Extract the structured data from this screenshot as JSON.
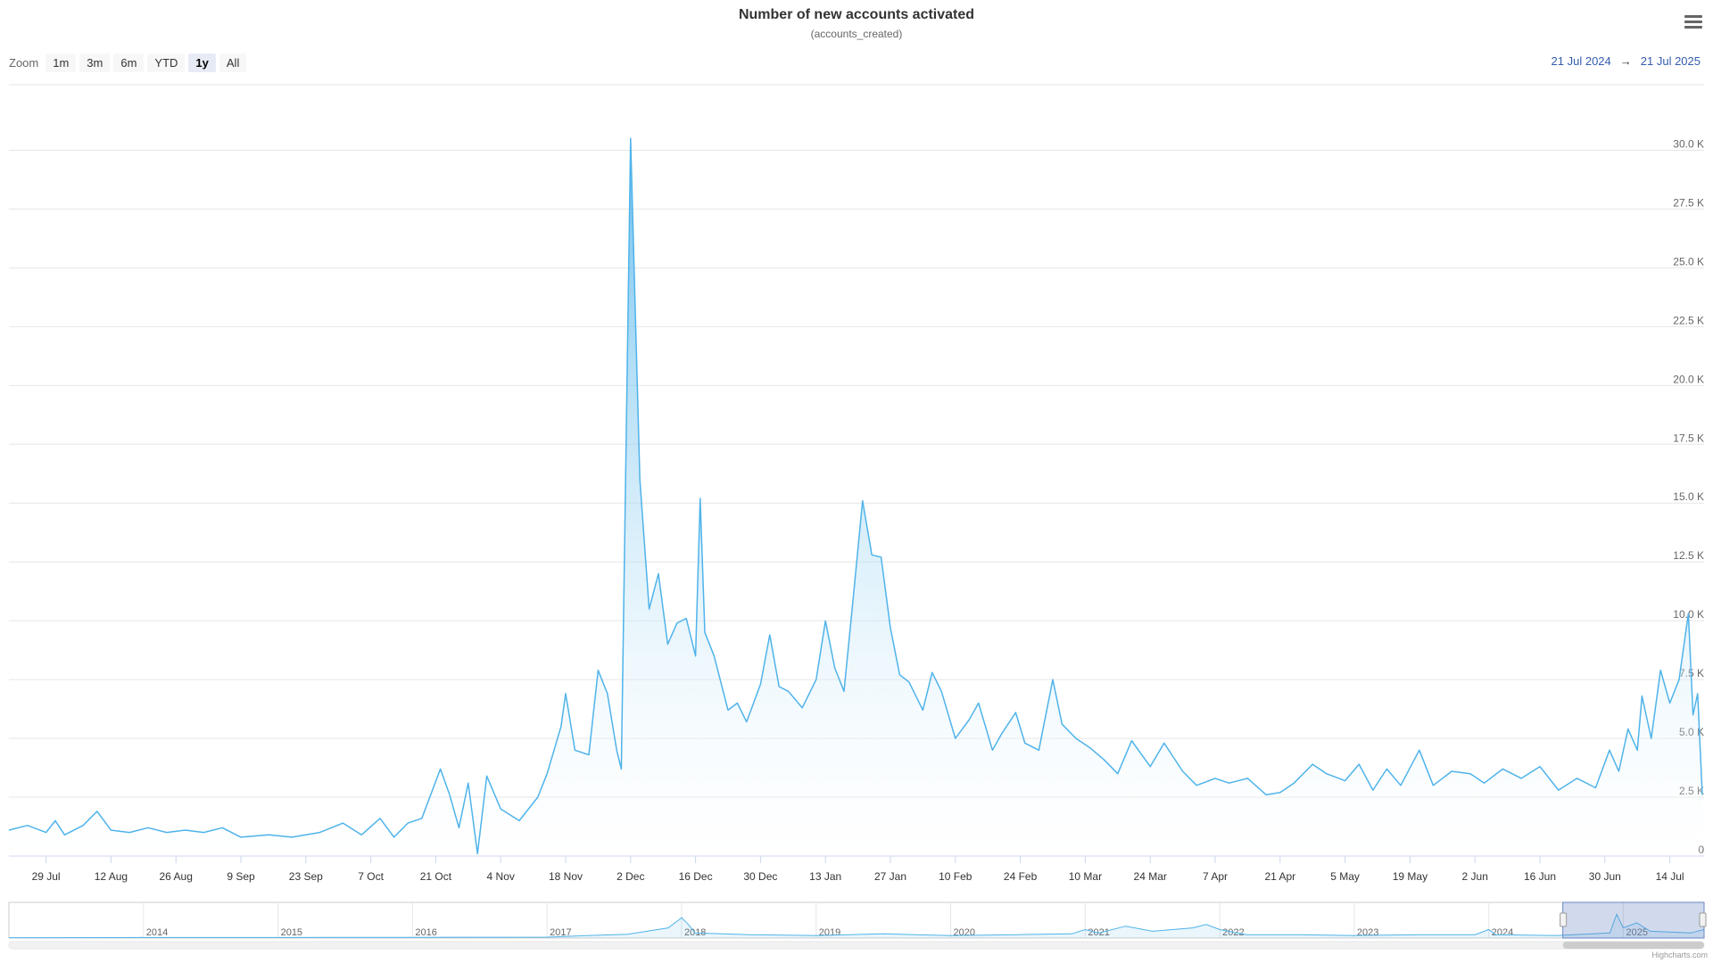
{
  "chart_data": {
    "type": "area",
    "title": "Number of new accounts activated",
    "subtitle": "(accounts_created)",
    "ylim": [
      0,
      30000
    ],
    "yticks": [
      0,
      2500,
      5000,
      7500,
      10000,
      12500,
      15000,
      17500,
      20000,
      22500,
      25000,
      27500,
      30000
    ],
    "ytick_labels": [
      "0",
      "2.5 K",
      "5.0 K",
      "7.5 K",
      "10.0 K",
      "12.5 K",
      "15.0 K",
      "17.5 K",
      "20.0 K",
      "22.5 K",
      "25.0 K",
      "27.5 K",
      "30.0 K"
    ],
    "xlim": [
      "2024-07-21",
      "2025-07-21"
    ],
    "xticks": [
      {
        "date": "2024-07-29",
        "label": "29 Jul"
      },
      {
        "date": "2024-08-12",
        "label": "12 Aug"
      },
      {
        "date": "2024-08-26",
        "label": "26 Aug"
      },
      {
        "date": "2024-09-09",
        "label": "9 Sep"
      },
      {
        "date": "2024-09-23",
        "label": "23 Sep"
      },
      {
        "date": "2024-10-07",
        "label": "7 Oct"
      },
      {
        "date": "2024-10-21",
        "label": "21 Oct"
      },
      {
        "date": "2024-11-04",
        "label": "4 Nov"
      },
      {
        "date": "2024-11-18",
        "label": "18 Nov"
      },
      {
        "date": "2024-12-02",
        "label": "2 Dec"
      },
      {
        "date": "2024-12-16",
        "label": "16 Dec"
      },
      {
        "date": "2024-12-30",
        "label": "30 Dec"
      },
      {
        "date": "2025-01-13",
        "label": "13 Jan"
      },
      {
        "date": "2025-01-27",
        "label": "27 Jan"
      },
      {
        "date": "2025-02-10",
        "label": "10 Feb"
      },
      {
        "date": "2025-02-24",
        "label": "24 Feb"
      },
      {
        "date": "2025-03-10",
        "label": "10 Mar"
      },
      {
        "date": "2025-03-24",
        "label": "24 Mar"
      },
      {
        "date": "2025-04-07",
        "label": "7 Apr"
      },
      {
        "date": "2025-04-21",
        "label": "21 Apr"
      },
      {
        "date": "2025-05-05",
        "label": "5 May"
      },
      {
        "date": "2025-05-19",
        "label": "19 May"
      },
      {
        "date": "2025-06-02",
        "label": "2 Jun"
      },
      {
        "date": "2025-06-16",
        "label": "16 Jun"
      },
      {
        "date": "2025-06-30",
        "label": "30 Jun"
      },
      {
        "date": "2025-07-14",
        "label": "14 Jul"
      }
    ],
    "series": [
      {
        "color": "#4fb3ea",
        "points": [
          [
            "2024-07-21",
            1100
          ],
          [
            "2024-07-25",
            1300
          ],
          [
            "2024-07-29",
            1000
          ],
          [
            "2024-07-31",
            1500
          ],
          [
            "2024-08-02",
            900
          ],
          [
            "2024-08-06",
            1300
          ],
          [
            "2024-08-09",
            1900
          ],
          [
            "2024-08-12",
            1100
          ],
          [
            "2024-08-16",
            1000
          ],
          [
            "2024-08-20",
            1200
          ],
          [
            "2024-08-24",
            1000
          ],
          [
            "2024-08-28",
            1100
          ],
          [
            "2024-09-01",
            1000
          ],
          [
            "2024-09-05",
            1200
          ],
          [
            "2024-09-09",
            800
          ],
          [
            "2024-09-15",
            900
          ],
          [
            "2024-09-20",
            800
          ],
          [
            "2024-09-26",
            1000
          ],
          [
            "2024-10-01",
            1400
          ],
          [
            "2024-10-05",
            900
          ],
          [
            "2024-10-09",
            1600
          ],
          [
            "2024-10-12",
            800
          ],
          [
            "2024-10-15",
            1400
          ],
          [
            "2024-10-18",
            1600
          ],
          [
            "2024-10-22",
            3700
          ],
          [
            "2024-10-24",
            2600
          ],
          [
            "2024-10-26",
            1200
          ],
          [
            "2024-10-28",
            3100
          ],
          [
            "2024-10-30",
            100
          ],
          [
            "2024-11-01",
            3400
          ],
          [
            "2024-11-04",
            2000
          ],
          [
            "2024-11-08",
            1500
          ],
          [
            "2024-11-12",
            2500
          ],
          [
            "2024-11-14",
            3500
          ],
          [
            "2024-11-17",
            5500
          ],
          [
            "2024-11-18",
            6900
          ],
          [
            "2024-11-20",
            4500
          ],
          [
            "2024-11-23",
            4300
          ],
          [
            "2024-11-25",
            7900
          ],
          [
            "2024-11-27",
            6900
          ],
          [
            "2024-11-29",
            4500
          ],
          [
            "2024-11-30",
            3700
          ],
          [
            "2024-12-02",
            30500
          ],
          [
            "2024-12-04",
            16000
          ],
          [
            "2024-12-06",
            10500
          ],
          [
            "2024-12-08",
            12000
          ],
          [
            "2024-12-10",
            9000
          ],
          [
            "2024-12-12",
            9900
          ],
          [
            "2024-12-14",
            10100
          ],
          [
            "2024-12-16",
            8500
          ],
          [
            "2024-12-17",
            15200
          ],
          [
            "2024-12-18",
            9500
          ],
          [
            "2024-12-20",
            8500
          ],
          [
            "2024-12-23",
            6200
          ],
          [
            "2024-12-25",
            6500
          ],
          [
            "2024-12-27",
            5700
          ],
          [
            "2024-12-30",
            7300
          ],
          [
            "2025-01-01",
            9400
          ],
          [
            "2025-01-03",
            7200
          ],
          [
            "2025-01-05",
            7000
          ],
          [
            "2025-01-08",
            6300
          ],
          [
            "2025-01-11",
            7500
          ],
          [
            "2025-01-13",
            10000
          ],
          [
            "2025-01-15",
            8000
          ],
          [
            "2025-01-17",
            7000
          ],
          [
            "2025-01-19",
            11000
          ],
          [
            "2025-01-21",
            15100
          ],
          [
            "2025-01-23",
            12800
          ],
          [
            "2025-01-25",
            12700
          ],
          [
            "2025-01-27",
            9700
          ],
          [
            "2025-01-29",
            7700
          ],
          [
            "2025-01-31",
            7400
          ],
          [
            "2025-02-03",
            6200
          ],
          [
            "2025-02-05",
            7800
          ],
          [
            "2025-02-07",
            7000
          ],
          [
            "2025-02-10",
            5000
          ],
          [
            "2025-02-13",
            5800
          ],
          [
            "2025-02-15",
            6500
          ],
          [
            "2025-02-18",
            4500
          ],
          [
            "2025-02-20",
            5200
          ],
          [
            "2025-02-23",
            6100
          ],
          [
            "2025-02-25",
            4800
          ],
          [
            "2025-02-28",
            4500
          ],
          [
            "2025-03-03",
            7500
          ],
          [
            "2025-03-05",
            5600
          ],
          [
            "2025-03-08",
            5000
          ],
          [
            "2025-03-11",
            4600
          ],
          [
            "2025-03-14",
            4100
          ],
          [
            "2025-03-17",
            3500
          ],
          [
            "2025-03-20",
            4900
          ],
          [
            "2025-03-24",
            3800
          ],
          [
            "2025-03-27",
            4800
          ],
          [
            "2025-03-31",
            3600
          ],
          [
            "2025-04-03",
            3000
          ],
          [
            "2025-04-07",
            3300
          ],
          [
            "2025-04-10",
            3100
          ],
          [
            "2025-04-14",
            3300
          ],
          [
            "2025-04-18",
            2600
          ],
          [
            "2025-04-21",
            2700
          ],
          [
            "2025-04-24",
            3100
          ],
          [
            "2025-04-28",
            3900
          ],
          [
            "2025-05-01",
            3500
          ],
          [
            "2025-05-05",
            3200
          ],
          [
            "2025-05-08",
            3900
          ],
          [
            "2025-05-11",
            2800
          ],
          [
            "2025-05-14",
            3700
          ],
          [
            "2025-05-17",
            3000
          ],
          [
            "2025-05-21",
            4500
          ],
          [
            "2025-05-24",
            3000
          ],
          [
            "2025-05-28",
            3600
          ],
          [
            "2025-06-01",
            3500
          ],
          [
            "2025-06-04",
            3100
          ],
          [
            "2025-06-08",
            3700
          ],
          [
            "2025-06-12",
            3300
          ],
          [
            "2025-06-16",
            3800
          ],
          [
            "2025-06-20",
            2800
          ],
          [
            "2025-06-24",
            3300
          ],
          [
            "2025-06-28",
            2900
          ],
          [
            "2025-07-01",
            4500
          ],
          [
            "2025-07-03",
            3600
          ],
          [
            "2025-07-05",
            5400
          ],
          [
            "2025-07-07",
            4500
          ],
          [
            "2025-07-08",
            6800
          ],
          [
            "2025-07-10",
            5000
          ],
          [
            "2025-07-12",
            7900
          ],
          [
            "2025-07-14",
            6500
          ],
          [
            "2025-07-16",
            7500
          ],
          [
            "2025-07-18",
            10300
          ],
          [
            "2025-07-19",
            6000
          ],
          [
            "2025-07-20",
            6900
          ],
          [
            "2025-07-21",
            2600
          ]
        ]
      }
    ],
    "navigator": {
      "year_labels": [
        "2014",
        "2015",
        "2016",
        "2017",
        "2018",
        "2019",
        "2020",
        "2021",
        "2022",
        "2023",
        "2024",
        "2025"
      ],
      "selected_range": [
        "2024-07-21",
        "2025-07-21"
      ]
    }
  },
  "zoom": {
    "label": "Zoom",
    "buttons": [
      "1m",
      "3m",
      "6m",
      "YTD",
      "1y",
      "All"
    ],
    "active": "1y"
  },
  "range": {
    "from": "21 Jul 2024",
    "arrow": "→",
    "to": "21 Jul 2025"
  },
  "credits": "Highcharts.com",
  "colors": {
    "line": "#4fb3ea",
    "fill_top": "#4fb3ea",
    "fill_bottom": "#ffffff",
    "grid": "#e6e6e6",
    "navigator_mask": "#6685c2"
  }
}
